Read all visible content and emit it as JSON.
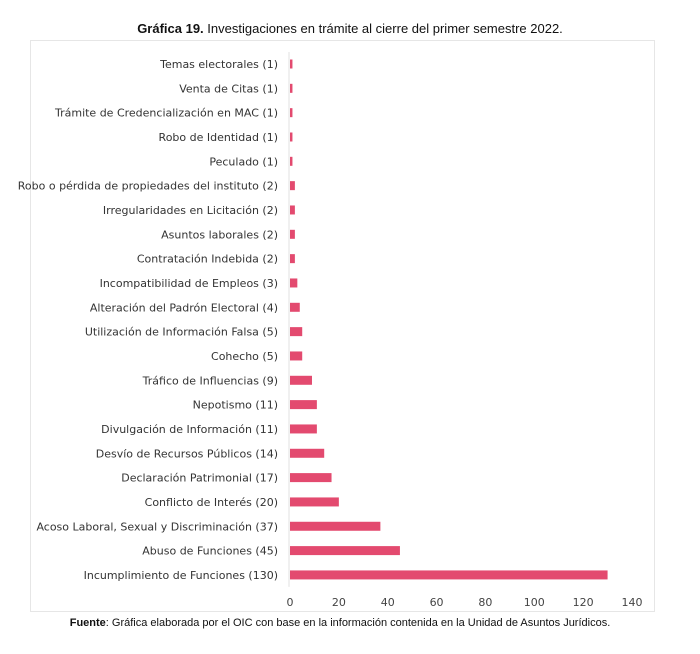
{
  "title_bold": "Gráfica 19.",
  "title_rest": " Investigaciones en trámite al cierre del primer semestre 2022.",
  "source_bold": "Fuente",
  "source_rest": ": Gráfica elaborada por el OIC con base en la información contenida en la Unidad de Asuntos Jurídicos.",
  "chart_data": {
    "type": "bar",
    "orientation": "horizontal",
    "bar_color": "#e34a6f",
    "xlim": [
      0,
      140
    ],
    "xticks": [
      0,
      20,
      40,
      60,
      80,
      100,
      120,
      140
    ],
    "grid": false,
    "categories": [
      "Temas electorales (1)",
      "Venta de Citas (1)",
      "Trámite de Credencialización en MAC (1)",
      "Robo de Identidad (1)",
      "Peculado (1)",
      "Robo o pérdida de propiedades del instituto (2)",
      "Irregularidades en Licitación (2)",
      "Asuntos laborales (2)",
      "Contratación Indebida (2)",
      "Incompatibilidad de Empleos (3)",
      "Alteración del Padrón Electoral (4)",
      "Utilización de Información Falsa (5)",
      "Cohecho (5)",
      "Tráfico de Influencias (9)",
      "Nepotismo (11)",
      "Divulgación de Información (11)",
      "Desvío de Recursos Públicos (14)",
      "Declaración Patrimonial (17)",
      "Conflicto de Interés (20)",
      "Acoso Laboral, Sexual y Discriminación (37)",
      "Abuso de Funciones (45)",
      "Incumplimiento de Funciones (130)"
    ],
    "values": [
      1,
      1,
      1,
      1,
      1,
      2,
      2,
      2,
      2,
      3,
      4,
      5,
      5,
      9,
      11,
      11,
      14,
      17,
      20,
      37,
      45,
      130
    ]
  }
}
